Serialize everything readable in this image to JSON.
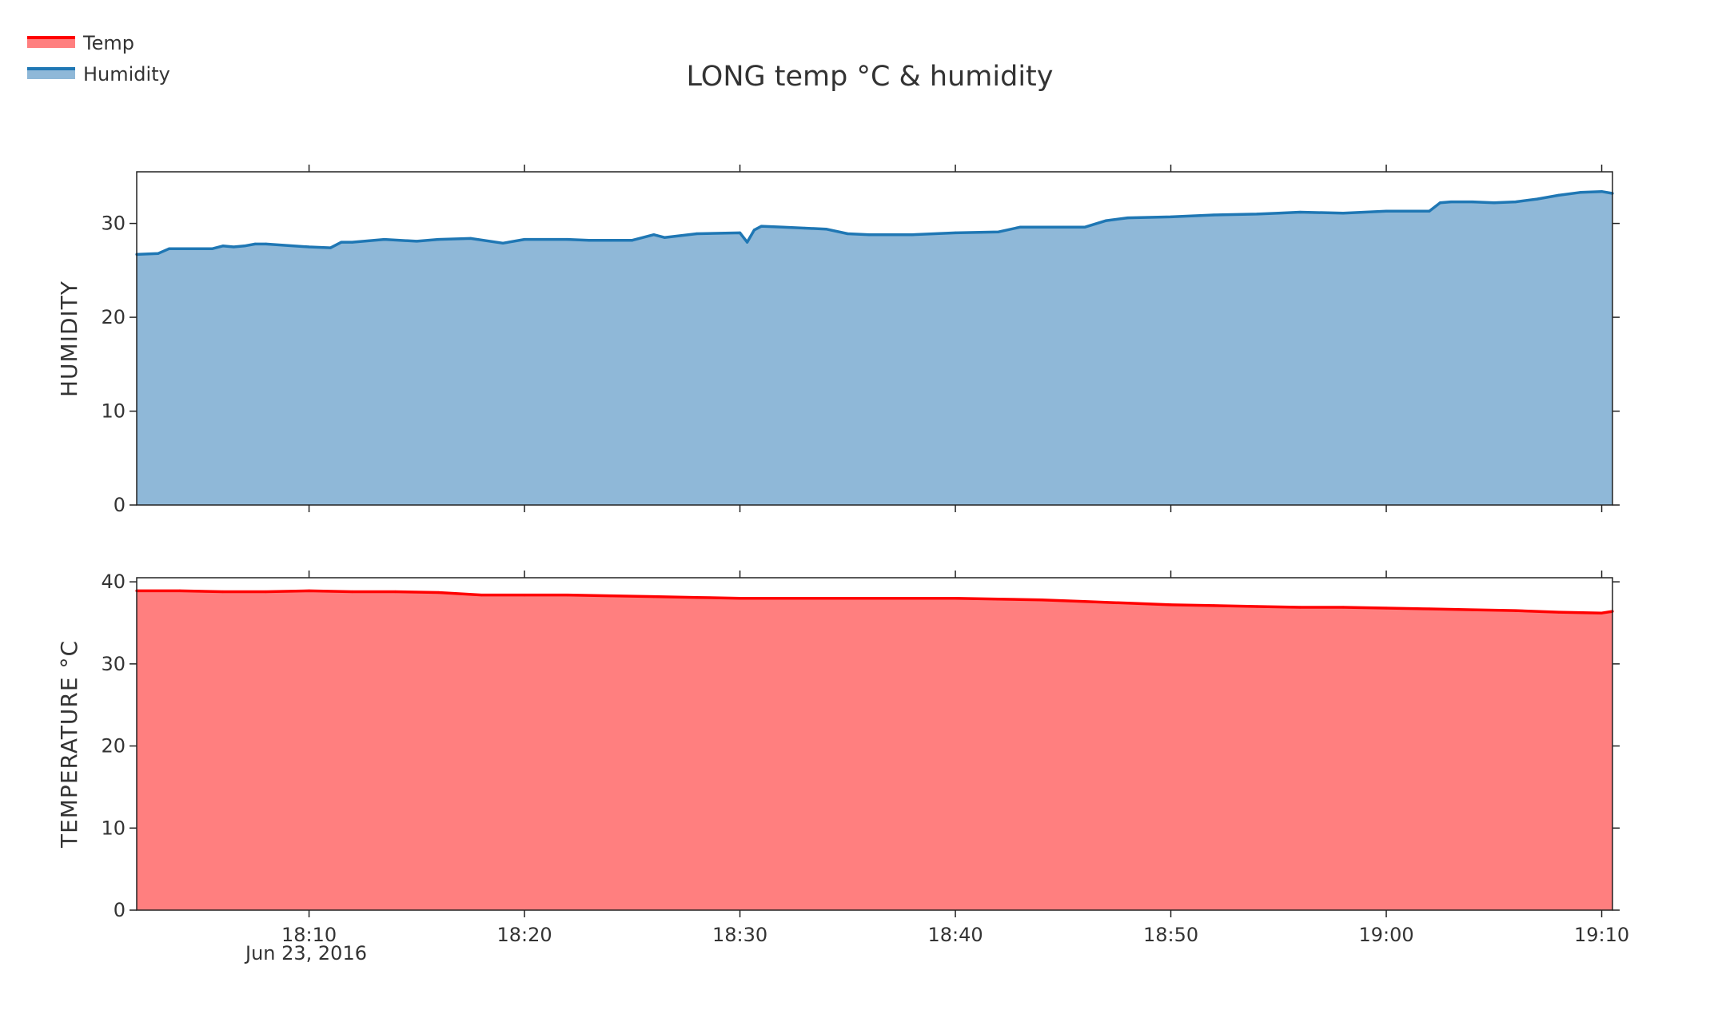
{
  "chart_data": [
    {
      "type": "area",
      "title": "LONG temp °C & humidity",
      "legend": {
        "placement": "top-left",
        "entries": [
          {
            "name": "Temp",
            "color": "#ff0000",
            "fill": "#ff7f7f"
          },
          {
            "name": "Humidity",
            "color": "#1f77b4",
            "fill": "#8fb8d8"
          }
        ]
      },
      "x_ticks": [
        "18:10",
        "18:20",
        "18:30",
        "18:40",
        "18:50",
        "19:00",
        "19:10"
      ],
      "x_date_label": "Jun 23, 2016",
      "xlim": [
        "2016-06-23 18:02",
        "2016-06-23 19:10:30"
      ],
      "grid": false,
      "panels": [
        {
          "id": "humidity",
          "ylabel": "HUMIDITY",
          "ylim": [
            0,
            35.5
          ],
          "y_ticks": [
            0,
            10,
            20,
            30
          ],
          "series": [
            {
              "name": "Humidity",
              "color": "#1f77b4",
              "fill": "#8fb8d8",
              "x": [
                "18:02:00",
                "18:03:00",
                "18:03:30",
                "18:05:30",
                "18:06:00",
                "18:06:30",
                "18:07:00",
                "18:07:30",
                "18:08:00",
                "18:10:00",
                "18:11:00",
                "18:11:30",
                "18:12:00",
                "18:13:30",
                "18:15:00",
                "18:16:00",
                "18:17:30",
                "18:19:00",
                "18:20:00",
                "18:22:00",
                "18:23:00",
                "18:24:00",
                "18:25:00",
                "18:26:00",
                "18:26:30",
                "18:28:00",
                "18:30:00",
                "18:30:20",
                "18:30:40",
                "18:31:00",
                "18:32:00",
                "18:33:00",
                "18:34:00",
                "18:35:00",
                "18:36:00",
                "18:38:00",
                "18:40:00",
                "18:42:00",
                "18:43:00",
                "18:45:00",
                "18:46:00",
                "18:47:00",
                "18:48:00",
                "18:50:00",
                "18:52:00",
                "18:54:00",
                "18:55:00",
                "18:56:00",
                "18:58:00",
                "19:00:00",
                "19:02:00",
                "19:02:30",
                "19:03:00",
                "19:04:00",
                "19:05:00",
                "19:06:00",
                "19:07:00",
                "19:08:00",
                "19:09:00",
                "19:10:00",
                "19:10:30"
              ],
              "y": [
                26.7,
                26.8,
                27.3,
                27.3,
                27.6,
                27.5,
                27.6,
                27.8,
                27.8,
                27.5,
                27.4,
                28.0,
                28.0,
                28.3,
                28.1,
                28.3,
                28.4,
                27.9,
                28.3,
                28.3,
                28.2,
                28.2,
                28.2,
                28.8,
                28.5,
                28.9,
                29.0,
                28.0,
                29.3,
                29.7,
                29.6,
                29.5,
                29.4,
                28.9,
                28.8,
                28.8,
                29.0,
                29.1,
                29.6,
                29.6,
                29.6,
                30.3,
                30.6,
                30.7,
                30.9,
                31.0,
                31.1,
                31.2,
                31.1,
                31.3,
                31.3,
                32.2,
                32.3,
                32.3,
                32.2,
                32.3,
                32.6,
                33.0,
                33.3,
                33.4,
                33.2
              ]
            }
          ]
        },
        {
          "id": "temperature",
          "ylabel": "TEMPERATURE °C",
          "ylim": [
            0,
            40.5
          ],
          "y_ticks": [
            0,
            10,
            20,
            30,
            40
          ],
          "series": [
            {
              "name": "Temp",
              "color": "#ff0000",
              "fill": "#ff7f7f",
              "x": [
                "18:02:00",
                "18:04:00",
                "18:06:00",
                "18:08:00",
                "18:10:00",
                "18:12:00",
                "18:14:00",
                "18:16:00",
                "18:18:00",
                "18:20:00",
                "18:22:00",
                "18:24:00",
                "18:26:00",
                "18:28:00",
                "18:30:00",
                "18:32:00",
                "18:34:00",
                "18:36:00",
                "18:38:00",
                "18:40:00",
                "18:42:00",
                "18:44:00",
                "18:46:00",
                "18:48:00",
                "18:50:00",
                "18:52:00",
                "18:54:00",
                "18:56:00",
                "18:58:00",
                "19:00:00",
                "19:02:00",
                "19:04:00",
                "19:06:00",
                "19:08:00",
                "19:10:00",
                "19:10:30"
              ],
              "y": [
                38.9,
                38.9,
                38.8,
                38.8,
                38.9,
                38.8,
                38.8,
                38.7,
                38.4,
                38.4,
                38.4,
                38.3,
                38.2,
                38.1,
                38.0,
                38.0,
                38.0,
                38.0,
                38.0,
                38.0,
                37.9,
                37.8,
                37.6,
                37.4,
                37.2,
                37.1,
                37.0,
                36.9,
                36.9,
                36.8,
                36.7,
                36.6,
                36.5,
                36.3,
                36.2,
                36.4
              ]
            }
          ]
        }
      ]
    }
  ]
}
